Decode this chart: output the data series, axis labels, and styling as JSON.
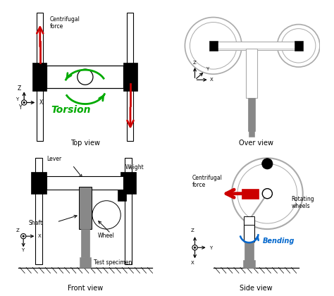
{
  "bg_color": "#ffffff",
  "gray": "#888888",
  "light_gray": "#aaaaaa",
  "blk": "#000000",
  "red": "#cc0000",
  "green": "#00aa00",
  "blue": "#0066cc",
  "panel_titles": [
    "Top view",
    "Over view",
    "Front view",
    "Side view"
  ]
}
